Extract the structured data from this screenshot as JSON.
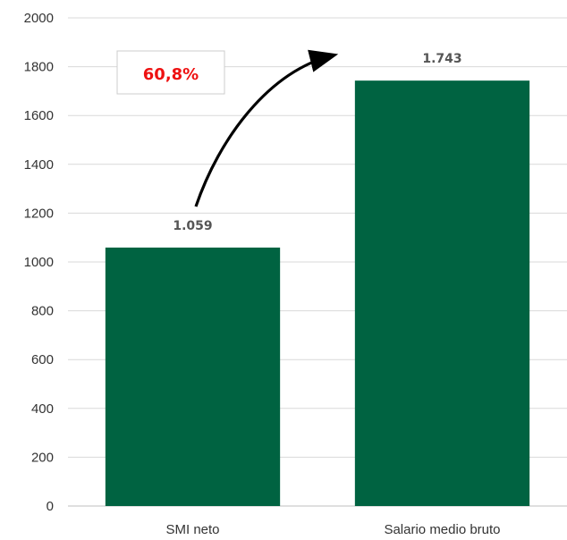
{
  "chart_data": {
    "type": "bar",
    "categories": [
      "SMI neto",
      "Salario medio bruto"
    ],
    "values": [
      1059,
      1743
    ],
    "data_labels": [
      "1.059",
      "1.743"
    ],
    "title": "",
    "xlabel": "",
    "ylabel": "",
    "ylim": [
      0,
      2000
    ],
    "yticks": [
      0,
      200,
      400,
      600,
      800,
      1000,
      1200,
      1400,
      1600,
      1800,
      2000
    ],
    "grid": true,
    "bar_color": "#006341",
    "annotation": {
      "text": "60,8%",
      "color": "#ee1111",
      "arrow": "from SMI neto bar to Salario medio bruto bar"
    }
  }
}
